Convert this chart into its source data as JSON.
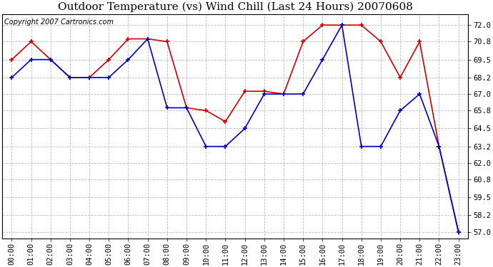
{
  "title": "Outdoor Temperature (vs) Wind Chill (Last 24 Hours) 20070608",
  "copyright_text": "Copyright 2007 Cartronics.com",
  "hours": [
    "00:00",
    "01:00",
    "02:00",
    "03:00",
    "04:00",
    "05:00",
    "06:00",
    "07:00",
    "08:00",
    "09:00",
    "10:00",
    "11:00",
    "12:00",
    "13:00",
    "14:00",
    "15:00",
    "16:00",
    "17:00",
    "18:00",
    "19:00",
    "20:00",
    "21:00",
    "22:00",
    "23:00"
  ],
  "red_temp": [
    69.5,
    70.8,
    69.5,
    68.2,
    68.2,
    69.5,
    71.0,
    71.0,
    70.8,
    66.0,
    65.8,
    65.0,
    67.2,
    67.2,
    67.0,
    70.8,
    72.0,
    72.0,
    72.0,
    70.8,
    68.2,
    70.8,
    63.2,
    57.0
  ],
  "blue_wc": [
    68.2,
    69.5,
    69.5,
    68.2,
    68.2,
    68.2,
    69.5,
    71.0,
    66.0,
    66.0,
    63.2,
    63.2,
    64.5,
    67.0,
    67.0,
    67.0,
    69.5,
    72.0,
    63.2,
    63.2,
    65.8,
    67.0,
    63.2,
    57.0
  ],
  "red_color": "#cc0000",
  "blue_color": "#0000cc",
  "background_color": "#ffffff",
  "plot_bg_color": "#ffffff",
  "grid_color": "#bbbbbb",
  "ylim": [
    56.5,
    72.8
  ],
  "yticks": [
    57.0,
    58.2,
    59.5,
    60.8,
    62.0,
    63.2,
    64.5,
    65.8,
    67.0,
    68.2,
    69.5,
    70.8,
    72.0
  ],
  "title_fontsize": 11,
  "copyright_fontsize": 7,
  "tick_fontsize": 7.5,
  "marker": "+",
  "marker_size": 5,
  "linewidth": 1.2
}
